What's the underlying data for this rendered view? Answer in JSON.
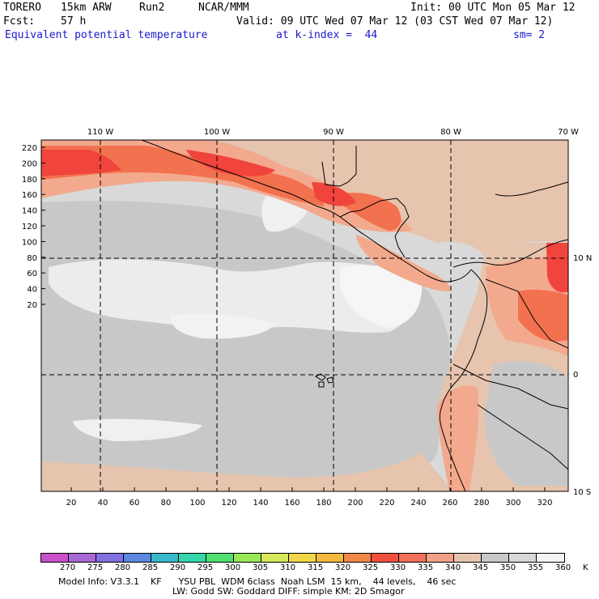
{
  "header": {
    "model": "TORERO",
    "resolution": "15km ARW",
    "run": "Run2",
    "org": "NCAR/MMM",
    "init": "Init: 00 UTC Mon 05 Mar 12",
    "fcst_label": "Fcst:",
    "fcst_value": "57 h",
    "valid": "Valid: 09 UTC Wed 07 Mar 12 (03 CST Wed 07 Mar 12)",
    "field": "Equivalent potential temperature",
    "level": "at k-index =  44",
    "smoothing": "sm= 2"
  },
  "map": {
    "top_lon_labels": [
      "110 W",
      "100 W",
      "90 W",
      "80 W",
      "70 W"
    ],
    "right_lat_labels": [
      "10 N",
      "0",
      "10 S"
    ],
    "left_y_ticks": [
      "220",
      "200",
      "180",
      "160",
      "140",
      "120",
      "100",
      "80",
      "60",
      "40",
      "20"
    ],
    "bottom_x_ticks": [
      "20",
      "40",
      "60",
      "80",
      "100",
      "120",
      "140",
      "160",
      "180",
      "200",
      "220",
      "240",
      "260",
      "280",
      "300",
      "320"
    ],
    "colors": {
      "ocean_grey": "#c8c8c8",
      "light_grey": "#d9d9d9",
      "white": "#f4f4f4",
      "tan": "#e6c4ae",
      "salmon": "#f3a98e",
      "orange_red": "#f2714f",
      "red": "#f0443c",
      "border": "#000000",
      "grid": "#000000"
    }
  },
  "colorbar": {
    "labels": [
      "270",
      "275",
      "280",
      "285",
      "290",
      "295",
      "300",
      "305",
      "310",
      "315",
      "320",
      "325",
      "330",
      "335",
      "340",
      "345",
      "350",
      "355",
      "360",
      "K"
    ],
    "colors": [
      "#c851c8",
      "#a868d6",
      "#8070e0",
      "#5c88e0",
      "#38b8c8",
      "#34d8a8",
      "#50e070",
      "#98e858",
      "#d8e858",
      "#f0d848",
      "#f4b840",
      "#f08848",
      "#f05040",
      "#f07058",
      "#f4a088",
      "#e8c4ae",
      "#c8c8c8",
      "#d8d8d8",
      "#f4f4f4"
    ]
  },
  "footer": {
    "line1": "Model Info: V3.3.1    KF      YSU PBL  WDM 6class  Noah LSM  15 km,    44 levels,    46 sec",
    "line2": "LW: Godd SW: Goddard DIFF: simple KM: 2D Smagor"
  }
}
